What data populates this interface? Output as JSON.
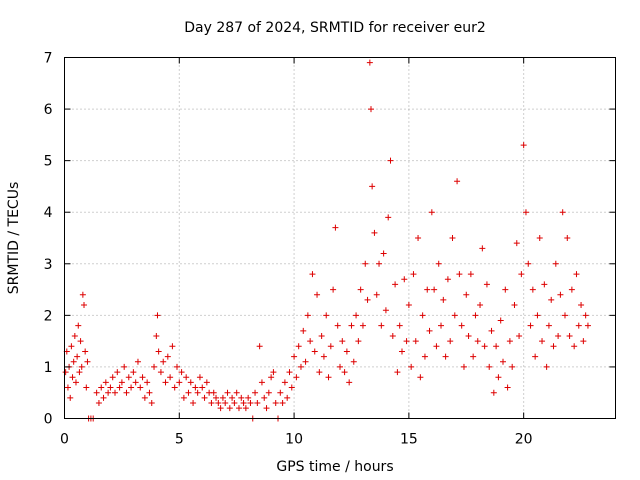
{
  "chart_data": {
    "type": "scatter",
    "title": "Day 287 of 2024, SRMTID for receiver eur2",
    "xlabel": "GPS time / hours",
    "ylabel": "SRMTID / TECUs",
    "xlim": [
      0,
      24
    ],
    "ylim": [
      0,
      7
    ],
    "xticks": [
      0,
      5,
      10,
      15,
      20
    ],
    "yticks": [
      0,
      1,
      2,
      3,
      4,
      5,
      6,
      7
    ],
    "xtick_labels": [
      "0",
      "5",
      "10",
      "15",
      "20"
    ],
    "ytick_labels": [
      "0",
      "1",
      "2",
      "3",
      "4",
      "5",
      "6",
      "7"
    ],
    "grid": true,
    "marker": "plus",
    "color": "#dd0000",
    "series": [
      {
        "name": "SRMTID",
        "points": [
          [
            0.05,
            0.9
          ],
          [
            0.1,
            1.3
          ],
          [
            0.15,
            0.6
          ],
          [
            0.2,
            1.0
          ],
          [
            0.25,
            0.4
          ],
          [
            0.3,
            1.4
          ],
          [
            0.35,
            0.8
          ],
          [
            0.4,
            1.1
          ],
          [
            0.45,
            1.6
          ],
          [
            0.5,
            0.7
          ],
          [
            0.55,
            1.2
          ],
          [
            0.6,
            1.8
          ],
          [
            0.65,
            0.9
          ],
          [
            0.7,
            1.5
          ],
          [
            0.75,
            1.0
          ],
          [
            0.8,
            2.4
          ],
          [
            0.85,
            2.2
          ],
          [
            0.9,
            1.3
          ],
          [
            0.95,
            0.6
          ],
          [
            1.0,
            1.1
          ],
          [
            1.05,
            0.0
          ],
          [
            1.15,
            0.0
          ],
          [
            1.25,
            0.0
          ],
          [
            1.4,
            0.5
          ],
          [
            1.5,
            0.3
          ],
          [
            1.6,
            0.6
          ],
          [
            1.7,
            0.4
          ],
          [
            1.8,
            0.7
          ],
          [
            1.9,
            0.5
          ],
          [
            2.0,
            0.6
          ],
          [
            2.1,
            0.8
          ],
          [
            2.2,
            0.5
          ],
          [
            2.3,
            0.9
          ],
          [
            2.4,
            0.6
          ],
          [
            2.5,
            0.7
          ],
          [
            2.6,
            1.0
          ],
          [
            2.7,
            0.5
          ],
          [
            2.8,
            0.8
          ],
          [
            2.9,
            0.6
          ],
          [
            3.0,
            0.9
          ],
          [
            3.1,
            0.7
          ],
          [
            3.2,
            1.1
          ],
          [
            3.3,
            0.6
          ],
          [
            3.4,
            0.8
          ],
          [
            3.5,
            0.4
          ],
          [
            3.6,
            0.7
          ],
          [
            3.7,
            0.5
          ],
          [
            3.8,
            0.3
          ],
          [
            3.9,
            1.0
          ],
          [
            4.0,
            1.6
          ],
          [
            4.05,
            2.0
          ],
          [
            4.1,
            1.3
          ],
          [
            4.2,
            0.9
          ],
          [
            4.3,
            1.1
          ],
          [
            4.4,
            0.7
          ],
          [
            4.5,
            1.2
          ],
          [
            4.6,
            0.8
          ],
          [
            4.7,
            1.4
          ],
          [
            4.8,
            0.6
          ],
          [
            4.9,
            1.0
          ],
          [
            5.0,
            0.7
          ],
          [
            5.1,
            0.9
          ],
          [
            5.2,
            0.4
          ],
          [
            5.3,
            0.8
          ],
          [
            5.4,
            0.5
          ],
          [
            5.5,
            0.7
          ],
          [
            5.6,
            0.3
          ],
          [
            5.7,
            0.6
          ],
          [
            5.8,
            0.5
          ],
          [
            5.9,
            0.8
          ],
          [
            6.0,
            0.6
          ],
          [
            6.1,
            0.4
          ],
          [
            6.2,
            0.7
          ],
          [
            6.3,
            0.5
          ],
          [
            6.4,
            0.3
          ],
          [
            6.5,
            0.5
          ],
          [
            6.6,
            0.4
          ],
          [
            6.7,
            0.3
          ],
          [
            6.8,
            0.2
          ],
          [
            6.9,
            0.4
          ],
          [
            7.0,
            0.3
          ],
          [
            7.1,
            0.5
          ],
          [
            7.2,
            0.2
          ],
          [
            7.3,
            0.4
          ],
          [
            7.4,
            0.3
          ],
          [
            7.5,
            0.5
          ],
          [
            7.6,
            0.2
          ],
          [
            7.7,
            0.4
          ],
          [
            7.8,
            0.3
          ],
          [
            7.9,
            0.2
          ],
          [
            8.0,
            0.4
          ],
          [
            8.1,
            0.3
          ],
          [
            8.2,
            0.0
          ],
          [
            8.3,
            0.5
          ],
          [
            8.4,
            0.3
          ],
          [
            8.5,
            1.4
          ],
          [
            8.6,
            0.7
          ],
          [
            8.7,
            0.4
          ],
          [
            8.8,
            0.2
          ],
          [
            8.9,
            0.5
          ],
          [
            9.0,
            0.8
          ],
          [
            9.1,
            0.9
          ],
          [
            9.2,
            0.3
          ],
          [
            9.3,
            0.0
          ],
          [
            9.4,
            0.5
          ],
          [
            9.5,
            0.3
          ],
          [
            9.6,
            0.7
          ],
          [
            9.7,
            0.4
          ],
          [
            9.8,
            0.9
          ],
          [
            9.9,
            0.6
          ],
          [
            10.0,
            1.2
          ],
          [
            10.1,
            0.8
          ],
          [
            10.2,
            1.4
          ],
          [
            10.3,
            1.0
          ],
          [
            10.4,
            1.7
          ],
          [
            10.5,
            1.1
          ],
          [
            10.6,
            2.0
          ],
          [
            10.7,
            1.5
          ],
          [
            10.8,
            2.8
          ],
          [
            10.9,
            1.3
          ],
          [
            11.0,
            2.4
          ],
          [
            11.1,
            0.9
          ],
          [
            11.2,
            1.6
          ],
          [
            11.3,
            1.2
          ],
          [
            11.4,
            2.0
          ],
          [
            11.5,
            0.8
          ],
          [
            11.6,
            1.4
          ],
          [
            11.7,
            2.5
          ],
          [
            11.8,
            3.7
          ],
          [
            11.9,
            1.8
          ],
          [
            12.0,
            1.0
          ],
          [
            12.1,
            1.5
          ],
          [
            12.2,
            0.9
          ],
          [
            12.3,
            1.3
          ],
          [
            12.4,
            0.7
          ],
          [
            12.5,
            1.8
          ],
          [
            12.6,
            1.1
          ],
          [
            12.7,
            2.0
          ],
          [
            12.8,
            1.5
          ],
          [
            12.9,
            2.5
          ],
          [
            13.0,
            1.8
          ],
          [
            13.1,
            3.0
          ],
          [
            13.2,
            2.3
          ],
          [
            13.3,
            6.9
          ],
          [
            13.35,
            6.0
          ],
          [
            13.4,
            4.5
          ],
          [
            13.5,
            3.6
          ],
          [
            13.6,
            2.4
          ],
          [
            13.7,
            3.0
          ],
          [
            13.8,
            1.8
          ],
          [
            13.9,
            3.2
          ],
          [
            14.0,
            2.1
          ],
          [
            14.1,
            3.9
          ],
          [
            14.2,
            5.0
          ],
          [
            14.3,
            1.6
          ],
          [
            14.4,
            2.6
          ],
          [
            14.5,
            0.9
          ],
          [
            14.6,
            1.8
          ],
          [
            14.7,
            1.3
          ],
          [
            14.8,
            2.7
          ],
          [
            14.9,
            1.5
          ],
          [
            15.0,
            2.2
          ],
          [
            15.1,
            1.0
          ],
          [
            15.2,
            2.8
          ],
          [
            15.3,
            1.5
          ],
          [
            15.4,
            3.5
          ],
          [
            15.5,
            0.8
          ],
          [
            15.6,
            2.0
          ],
          [
            15.7,
            1.2
          ],
          [
            15.8,
            2.5
          ],
          [
            15.9,
            1.7
          ],
          [
            16.0,
            4.0
          ],
          [
            16.1,
            2.5
          ],
          [
            16.2,
            1.4
          ],
          [
            16.3,
            3.0
          ],
          [
            16.4,
            1.8
          ],
          [
            16.5,
            2.3
          ],
          [
            16.6,
            1.2
          ],
          [
            16.7,
            2.7
          ],
          [
            16.8,
            1.5
          ],
          [
            16.9,
            3.5
          ],
          [
            17.0,
            2.0
          ],
          [
            17.1,
            4.6
          ],
          [
            17.2,
            2.8
          ],
          [
            17.3,
            1.8
          ],
          [
            17.4,
            1.0
          ],
          [
            17.5,
            2.4
          ],
          [
            17.6,
            1.6
          ],
          [
            17.7,
            2.8
          ],
          [
            17.8,
            1.2
          ],
          [
            17.9,
            2.0
          ],
          [
            18.0,
            1.5
          ],
          [
            18.1,
            2.2
          ],
          [
            18.2,
            3.3
          ],
          [
            18.3,
            1.4
          ],
          [
            18.4,
            2.6
          ],
          [
            18.5,
            1.0
          ],
          [
            18.6,
            1.7
          ],
          [
            18.7,
            0.5
          ],
          [
            18.8,
            1.4
          ],
          [
            18.9,
            0.8
          ],
          [
            19.0,
            1.9
          ],
          [
            19.1,
            1.1
          ],
          [
            19.2,
            2.5
          ],
          [
            19.3,
            0.6
          ],
          [
            19.4,
            1.5
          ],
          [
            19.5,
            1.0
          ],
          [
            19.6,
            2.2
          ],
          [
            19.7,
            3.4
          ],
          [
            19.8,
            1.6
          ],
          [
            19.9,
            2.8
          ],
          [
            20.0,
            5.3
          ],
          [
            20.1,
            4.0
          ],
          [
            20.2,
            3.0
          ],
          [
            20.3,
            1.8
          ],
          [
            20.4,
            2.5
          ],
          [
            20.5,
            1.2
          ],
          [
            20.6,
            2.0
          ],
          [
            20.7,
            3.5
          ],
          [
            20.8,
            1.5
          ],
          [
            20.9,
            2.6
          ],
          [
            21.0,
            1.0
          ],
          [
            21.1,
            1.8
          ],
          [
            21.2,
            2.3
          ],
          [
            21.3,
            1.4
          ],
          [
            21.4,
            3.0
          ],
          [
            21.5,
            1.6
          ],
          [
            21.6,
            2.4
          ],
          [
            21.7,
            4.0
          ],
          [
            21.8,
            2.0
          ],
          [
            21.9,
            3.5
          ],
          [
            22.0,
            1.6
          ],
          [
            22.1,
            2.5
          ],
          [
            22.2,
            1.4
          ],
          [
            22.3,
            2.8
          ],
          [
            22.4,
            1.8
          ],
          [
            22.5,
            2.2
          ],
          [
            22.6,
            1.5
          ],
          [
            22.7,
            2.0
          ],
          [
            22.8,
            1.8
          ]
        ]
      }
    ]
  }
}
